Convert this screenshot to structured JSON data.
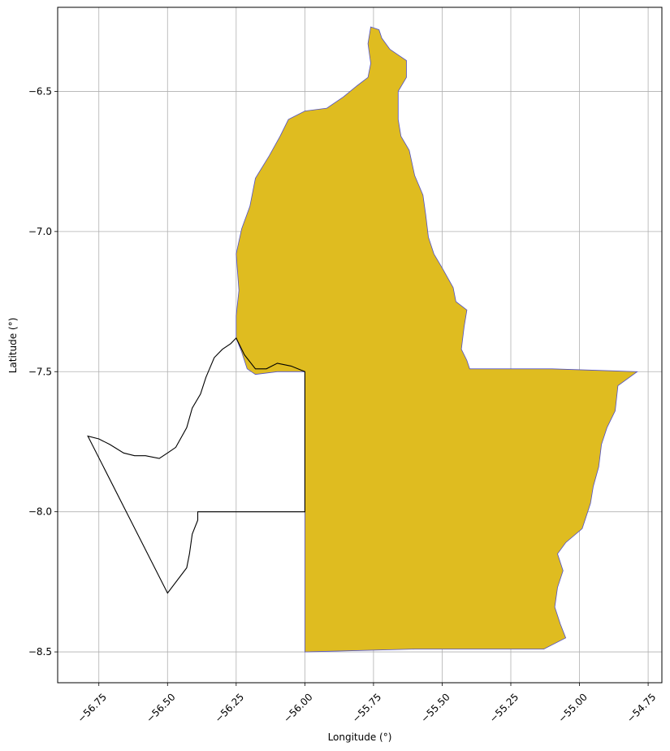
{
  "map": {
    "xlabel": "Longitude (°)",
    "ylabel": "Latitude (°)",
    "xlim": [
      -56.9,
      -54.7
    ],
    "ylim": [
      -8.61,
      -6.2
    ],
    "xticks": [
      -56.75,
      -56.5,
      -56.25,
      -56.0,
      -55.75,
      -55.5,
      -55.25,
      -55.0,
      -54.75
    ],
    "xtick_labels": [
      "−56.75",
      "−56.50",
      "−56.25",
      "−56.00",
      "−55.75",
      "−55.50",
      "−55.25",
      "−55.00",
      "−54.75"
    ],
    "yticks": [
      -6.5,
      -7.0,
      -7.5,
      -8.0,
      -8.5
    ],
    "ytick_labels": [
      "−6.5",
      "−7.0",
      "−7.5",
      "−8.0",
      "−8.5"
    ],
    "grid": true,
    "colors": {
      "fill": "#dfbc20",
      "edge": "#5050c8",
      "outline": "#000000",
      "grid": "#b0b0b0"
    },
    "regions": [
      {
        "kind": "filled",
        "coords": [
          [
            -55.76,
            -6.27
          ],
          [
            -55.73,
            -6.28
          ],
          [
            -55.72,
            -6.31
          ],
          [
            -55.69,
            -6.35
          ],
          [
            -55.66,
            -6.37
          ],
          [
            -55.63,
            -6.39
          ],
          [
            -55.63,
            -6.45
          ],
          [
            -55.66,
            -6.5
          ],
          [
            -55.66,
            -6.6
          ],
          [
            -55.65,
            -6.66
          ],
          [
            -55.62,
            -6.71
          ],
          [
            -55.6,
            -6.8
          ],
          [
            -55.57,
            -6.87
          ],
          [
            -55.56,
            -6.94
          ],
          [
            -55.55,
            -7.02
          ],
          [
            -55.53,
            -7.08
          ],
          [
            -55.5,
            -7.13
          ],
          [
            -55.46,
            -7.2
          ],
          [
            -55.45,
            -7.25
          ],
          [
            -55.41,
            -7.28
          ],
          [
            -55.42,
            -7.34
          ],
          [
            -55.43,
            -7.42
          ],
          [
            -55.41,
            -7.46
          ],
          [
            -55.4,
            -7.49
          ],
          [
            -55.1,
            -7.49
          ],
          [
            -54.79,
            -7.5
          ],
          [
            -54.86,
            -7.55
          ],
          [
            -54.87,
            -7.64
          ],
          [
            -54.9,
            -7.7
          ],
          [
            -54.92,
            -7.76
          ],
          [
            -54.93,
            -7.84
          ],
          [
            -54.95,
            -7.91
          ],
          [
            -54.96,
            -7.97
          ],
          [
            -54.99,
            -8.06
          ],
          [
            -55.05,
            -8.11
          ],
          [
            -55.08,
            -8.15
          ],
          [
            -55.06,
            -8.21
          ],
          [
            -55.08,
            -8.27
          ],
          [
            -55.09,
            -8.34
          ],
          [
            -55.07,
            -8.4
          ],
          [
            -55.05,
            -8.45
          ],
          [
            -55.13,
            -8.49
          ],
          [
            -55.6,
            -8.49
          ],
          [
            -56.0,
            -8.5
          ],
          [
            -56.0,
            -8.3
          ],
          [
            -56.0,
            -8.1
          ],
          [
            -56.0,
            -8.0
          ],
          [
            -56.0,
            -7.75
          ],
          [
            -56.0,
            -7.5
          ],
          [
            -56.1,
            -7.5
          ],
          [
            -56.18,
            -7.51
          ],
          [
            -56.21,
            -7.49
          ],
          [
            -56.23,
            -7.43
          ],
          [
            -56.25,
            -7.38
          ],
          [
            -56.25,
            -7.3
          ],
          [
            -56.24,
            -7.21
          ],
          [
            -56.25,
            -7.08
          ],
          [
            -56.23,
            -6.99
          ],
          [
            -56.2,
            -6.91
          ],
          [
            -56.18,
            -6.81
          ],
          [
            -56.13,
            -6.73
          ],
          [
            -56.09,
            -6.66
          ],
          [
            -56.06,
            -6.6
          ],
          [
            -56.0,
            -6.57
          ],
          [
            -55.92,
            -6.56
          ],
          [
            -55.86,
            -6.52
          ],
          [
            -55.81,
            -6.48
          ],
          [
            -55.77,
            -6.45
          ],
          [
            -55.76,
            -6.4
          ],
          [
            -55.77,
            -6.33
          ]
        ]
      },
      {
        "kind": "outline",
        "coords": [
          [
            -56.0,
            -7.5
          ],
          [
            -56.05,
            -7.48
          ],
          [
            -56.1,
            -7.47
          ],
          [
            -56.14,
            -7.49
          ],
          [
            -56.18,
            -7.49
          ],
          [
            -56.22,
            -7.44
          ],
          [
            -56.25,
            -7.38
          ],
          [
            -56.27,
            -7.4
          ],
          [
            -56.3,
            -7.42
          ],
          [
            -56.33,
            -7.45
          ],
          [
            -56.36,
            -7.52
          ],
          [
            -56.38,
            -7.58
          ],
          [
            -56.41,
            -7.63
          ],
          [
            -56.43,
            -7.7
          ],
          [
            -56.47,
            -7.77
          ],
          [
            -56.5,
            -7.79
          ],
          [
            -56.53,
            -7.81
          ],
          [
            -56.58,
            -7.8
          ],
          [
            -56.62,
            -7.8
          ],
          [
            -56.66,
            -7.79
          ],
          [
            -56.71,
            -7.76
          ],
          [
            -56.75,
            -7.74
          ],
          [
            -56.79,
            -7.73
          ],
          [
            -56.5,
            -8.29
          ],
          [
            -56.43,
            -8.2
          ],
          [
            -56.42,
            -8.15
          ],
          [
            -56.41,
            -8.08
          ],
          [
            -56.39,
            -8.03
          ],
          [
            -56.39,
            -8.0
          ],
          [
            -56.2,
            -8.0
          ],
          [
            -56.0,
            -8.0
          ],
          [
            -56.0,
            -7.75
          ]
        ]
      }
    ]
  }
}
